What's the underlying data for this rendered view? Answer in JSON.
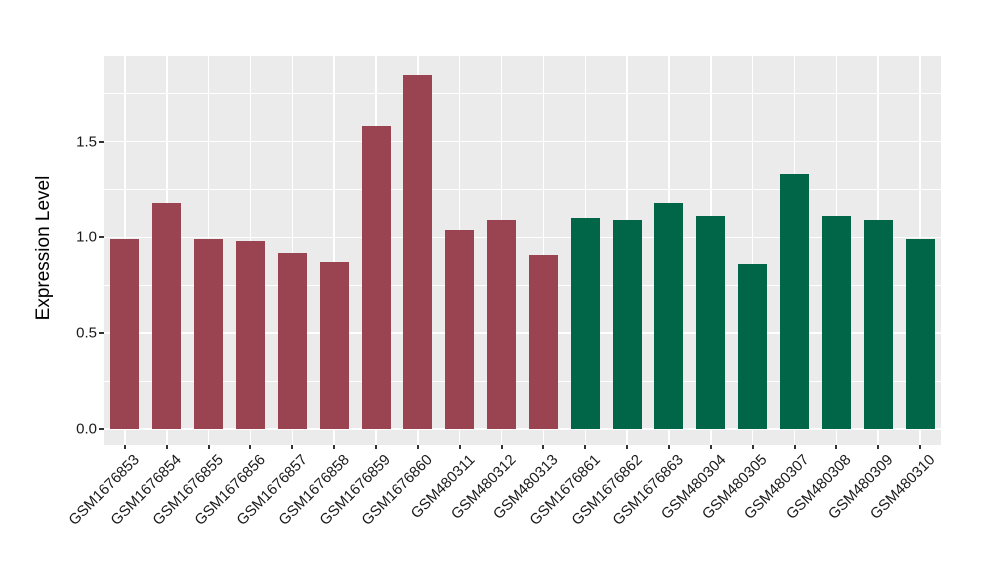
{
  "figure": {
    "background": "#FFFFFF",
    "panel_background": "#EBEBEB",
    "grid_color": "#FFFFFF",
    "tick_mark_color": "#333333",
    "axis_text_color": "#1A1A1A"
  },
  "chart_data": {
    "type": "bar",
    "title": "",
    "xlabel": "",
    "ylabel": "Expression Level",
    "ylim": [
      -0.09,
      1.95
    ],
    "yticks": [
      0.0,
      0.5,
      1.0,
      1.5
    ],
    "ytick_labels": [
      "0.0",
      "0.5",
      "1.0",
      "1.5"
    ],
    "yticks_minor": [
      0.25,
      0.75,
      1.25,
      1.75
    ],
    "grid": "major and minor horizontal white lines, vertical white line at each category center",
    "legend_position": "none",
    "categories": [
      "GSM1676853",
      "GSM1676854",
      "GSM1676855",
      "GSM1676856",
      "GSM1676857",
      "GSM1676858",
      "GSM1676859",
      "GSM1676860",
      "GSM480311",
      "GSM480312",
      "GSM480313",
      "GSM1676861",
      "GSM1676862",
      "GSM1676863",
      "GSM480304",
      "GSM480305",
      "GSM480307",
      "GSM480308",
      "GSM480309",
      "GSM480310"
    ],
    "values": [
      0.99,
      1.18,
      0.99,
      0.98,
      0.92,
      0.87,
      1.58,
      1.85,
      1.04,
      1.09,
      0.91,
      1.1,
      1.09,
      1.18,
      1.11,
      0.86,
      1.33,
      1.11,
      1.09,
      0.99
    ],
    "groups": [
      "maroon",
      "maroon",
      "maroon",
      "maroon",
      "maroon",
      "maroon",
      "maroon",
      "maroon",
      "maroon",
      "maroon",
      "maroon",
      "green",
      "green",
      "green",
      "green",
      "green",
      "green",
      "green",
      "green",
      "green"
    ],
    "group_colors": {
      "maroon": "#9A4452",
      "green": "#006647"
    }
  }
}
